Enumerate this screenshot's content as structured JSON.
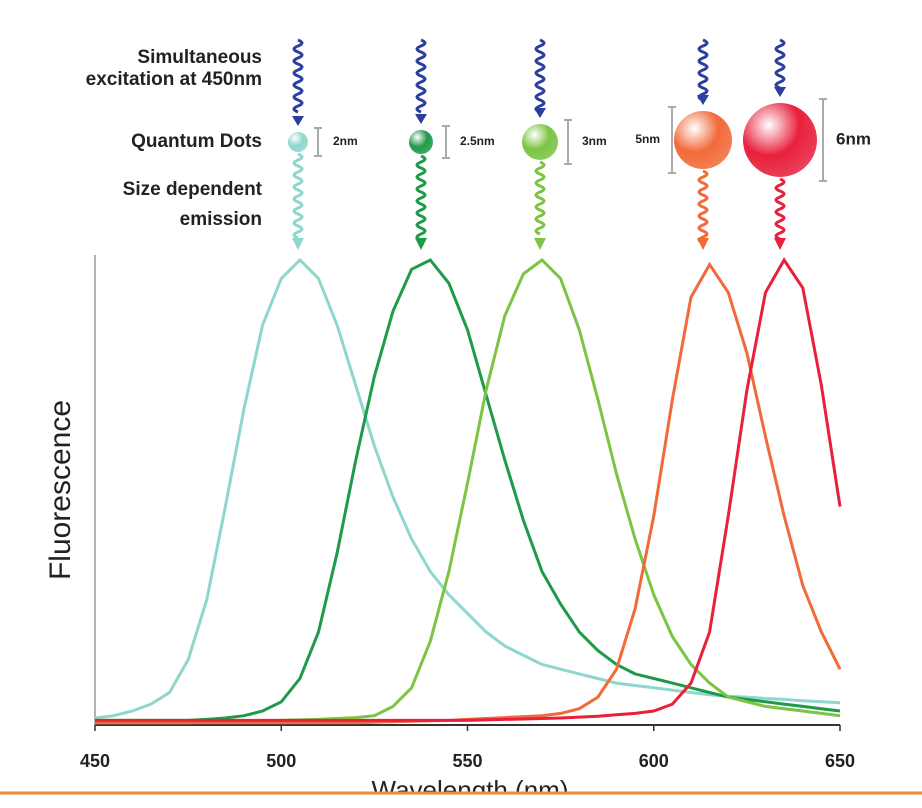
{
  "chart_data": {
    "type": "line",
    "ylabel": "Fluorescence",
    "xlabel": "Wavelength (nm)",
    "xlim": [
      450,
      650
    ],
    "xticks": [
      450,
      500,
      550,
      600,
      650
    ],
    "ylim": [
      0,
      1
    ],
    "annotations": {
      "excitation": [
        "Simultaneous",
        "excitation at 450nm"
      ],
      "dots": [
        "Quantum Dots"
      ],
      "emission": [
        "Size dependent",
        "emission"
      ]
    },
    "dot_sizes": [
      "2nm",
      "2.5nm",
      "3nm",
      "5nm",
      "6nm"
    ],
    "x": [
      450,
      455,
      460,
      465,
      470,
      475,
      480,
      485,
      490,
      495,
      500,
      505,
      510,
      515,
      520,
      525,
      530,
      535,
      540,
      545,
      550,
      555,
      560,
      565,
      570,
      575,
      580,
      585,
      590,
      595,
      600,
      605,
      610,
      615,
      620,
      625,
      630,
      635,
      640,
      645,
      650
    ],
    "series": [
      {
        "color": "#8fd6cc",
        "values": [
          0.015,
          0.02,
          0.03,
          0.045,
          0.07,
          0.14,
          0.27,
          0.47,
          0.68,
          0.86,
          0.96,
          1.0,
          0.96,
          0.86,
          0.73,
          0.6,
          0.49,
          0.4,
          0.33,
          0.28,
          0.24,
          0.2,
          0.17,
          0.15,
          0.13,
          0.12,
          0.11,
          0.1,
          0.09,
          0.085,
          0.08,
          0.075,
          0.07,
          0.065,
          0.062,
          0.06,
          0.057,
          0.055,
          0.052,
          0.05,
          0.048
        ]
      },
      {
        "color": "#1f9a4a",
        "values": [
          0.01,
          0.01,
          0.01,
          0.01,
          0.01,
          0.01,
          0.012,
          0.015,
          0.02,
          0.03,
          0.05,
          0.1,
          0.2,
          0.37,
          0.57,
          0.75,
          0.89,
          0.98,
          1.0,
          0.95,
          0.85,
          0.71,
          0.57,
          0.44,
          0.33,
          0.26,
          0.2,
          0.16,
          0.13,
          0.11,
          0.1,
          0.09,
          0.08,
          0.07,
          0.06,
          0.055,
          0.05,
          0.045,
          0.04,
          0.035,
          0.03
        ]
      },
      {
        "color": "#7cc444",
        "values": [
          0.005,
          0.005,
          0.005,
          0.005,
          0.005,
          0.005,
          0.006,
          0.007,
          0.008,
          0.009,
          0.01,
          0.011,
          0.012,
          0.014,
          0.016,
          0.02,
          0.04,
          0.08,
          0.18,
          0.33,
          0.52,
          0.72,
          0.88,
          0.97,
          1.0,
          0.96,
          0.85,
          0.7,
          0.54,
          0.4,
          0.28,
          0.19,
          0.13,
          0.09,
          0.06,
          0.05,
          0.04,
          0.035,
          0.03,
          0.025,
          0.02
        ]
      },
      {
        "color": "#f26a3a",
        "values": [
          0.005,
          0.005,
          0.005,
          0.005,
          0.005,
          0.005,
          0.005,
          0.005,
          0.005,
          0.005,
          0.005,
          0.005,
          0.005,
          0.005,
          0.005,
          0.006,
          0.007,
          0.008,
          0.009,
          0.01,
          0.012,
          0.014,
          0.016,
          0.018,
          0.02,
          0.025,
          0.035,
          0.06,
          0.12,
          0.25,
          0.45,
          0.7,
          0.92,
          0.99,
          0.93,
          0.8,
          0.62,
          0.45,
          0.3,
          0.2,
          0.12
        ]
      },
      {
        "color": "#e8203c",
        "values": [
          0.01,
          0.01,
          0.01,
          0.01,
          0.01,
          0.01,
          0.01,
          0.01,
          0.01,
          0.01,
          0.01,
          0.01,
          0.01,
          0.01,
          0.01,
          0.01,
          0.01,
          0.01,
          0.01,
          0.01,
          0.01,
          0.011,
          0.012,
          0.013,
          0.014,
          0.015,
          0.017,
          0.019,
          0.022,
          0.025,
          0.03,
          0.045,
          0.09,
          0.2,
          0.45,
          0.72,
          0.93,
          1.0,
          0.94,
          0.73,
          0.47
        ]
      }
    ]
  }
}
